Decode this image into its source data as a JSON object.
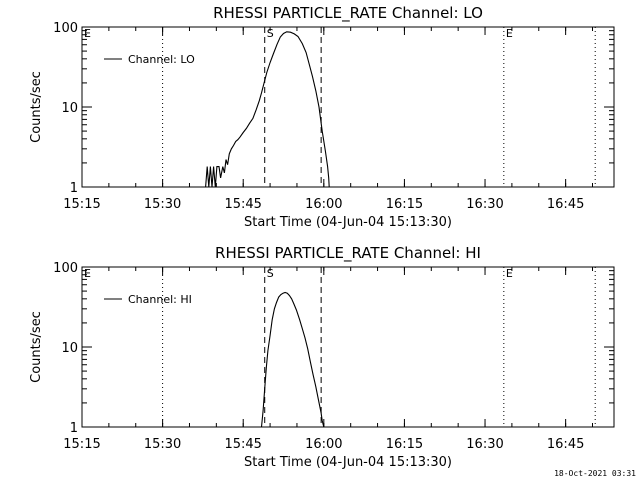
{
  "footer": {
    "timestamp": "18-Oct-2021 03:31"
  },
  "chart_data": [
    {
      "type": "line",
      "title": "RHESSI PARTICLE_RATE Channel: LO",
      "xlabel": "Start Time (04-Jun-04 15:13:30)",
      "ylabel": "Counts/sec",
      "yscale": "log",
      "ylim": [
        1,
        100
      ],
      "xlim": [
        15.25,
        16.9
      ],
      "xticks": [
        15.25,
        15.5,
        15.75,
        16.0,
        16.25,
        16.5,
        16.75
      ],
      "xtick_labels": [
        "15:15",
        "15:30",
        "15:45",
        "16:00",
        "16:15",
        "16:30",
        "16:45"
      ],
      "ytick_values": [
        1,
        10,
        100
      ],
      "ytick_labels": [
        "1",
        "10",
        "100"
      ],
      "legend": "Channel: LO",
      "vlines": [
        {
          "x": 15.5,
          "style": "dotted",
          "label": ""
        },
        {
          "x": 15.8167,
          "style": "dashed",
          "label": "S"
        },
        {
          "x": 15.9917,
          "style": "dashed",
          "label": ""
        },
        {
          "x": 16.5583,
          "style": "dotted",
          "label": "E"
        },
        {
          "x": 16.8417,
          "style": "dotted",
          "label": ""
        }
      ],
      "edge_labels": [
        "E"
      ],
      "series": [
        {
          "name": "Channel: LO",
          "x": [
            15.6333,
            15.6383,
            15.6433,
            15.6483,
            15.6533,
            15.6583,
            15.6633,
            15.6683,
            15.675,
            15.68,
            15.6867,
            15.6917,
            15.6967,
            15.7017,
            15.7067,
            15.7133,
            15.72,
            15.7267,
            15.7333,
            15.74,
            15.75,
            15.76,
            15.77,
            15.78,
            15.79,
            15.8,
            15.8067,
            15.8133,
            15.8233,
            15.8333,
            15.8433,
            15.855,
            15.865,
            15.875,
            15.885,
            15.8967,
            15.9083,
            15.92,
            15.9333,
            15.945,
            15.955,
            15.965,
            15.975,
            15.985,
            15.995,
            16.005,
            16.0117,
            16.015,
            16.0167
          ],
          "values": [
            1,
            1.8,
            1,
            1.8,
            1,
            1.8,
            1,
            1.8,
            1.8,
            1.3,
            1.8,
            1.5,
            2.2,
            1.9,
            2.6,
            3.0,
            3.3,
            3.7,
            3.9,
            4.2,
            4.8,
            5.4,
            6.3,
            7.2,
            9.2,
            12,
            15,
            19,
            27,
            36,
            46,
            61,
            75,
            83,
            87,
            86,
            82,
            76,
            62,
            48,
            34,
            24,
            16,
            10,
            5,
            2.8,
            1.8,
            1.3,
            1
          ]
        }
      ]
    },
    {
      "type": "line",
      "title": "RHESSI PARTICLE_RATE Channel: HI",
      "xlabel": "Start Time (04-Jun-04 15:13:30)",
      "ylabel": "Counts/sec",
      "yscale": "log",
      "ylim": [
        1,
        100
      ],
      "xlim": [
        15.25,
        16.9
      ],
      "xticks": [
        15.25,
        15.5,
        15.75,
        16.0,
        16.25,
        16.5,
        16.75
      ],
      "xtick_labels": [
        "15:15",
        "15:30",
        "15:45",
        "16:00",
        "16:15",
        "16:30",
        "16:45"
      ],
      "ytick_values": [
        1,
        10,
        100
      ],
      "ytick_labels": [
        "1",
        "10",
        "100"
      ],
      "legend": "Channel: HI",
      "vlines": [
        {
          "x": 15.5,
          "style": "dotted",
          "label": ""
        },
        {
          "x": 15.8167,
          "style": "dashed",
          "label": "S"
        },
        {
          "x": 15.9917,
          "style": "dashed",
          "label": ""
        },
        {
          "x": 16.5583,
          "style": "dotted",
          "label": "E"
        },
        {
          "x": 16.8417,
          "style": "dotted",
          "label": ""
        }
      ],
      "edge_labels": [
        "E"
      ],
      "series": [
        {
          "name": "Channel: HI",
          "x": [
            15.8067,
            15.8117,
            15.8167,
            15.8217,
            15.8267,
            15.8333,
            15.84,
            15.8467,
            15.8533,
            15.86,
            15.8667,
            15.8733,
            15.88,
            15.8867,
            15.8933,
            15.9,
            15.9067,
            15.915,
            15.925,
            15.9333,
            15.9417,
            15.95,
            15.9583,
            15.9667,
            15.975,
            15.9833,
            15.9917,
            15.995,
            16.0
          ],
          "values": [
            1,
            1.6,
            3,
            5.5,
            9,
            14,
            22,
            30,
            36,
            42,
            45,
            47,
            48,
            47,
            44,
            40,
            35,
            29,
            22,
            17,
            13,
            9.5,
            6.5,
            4.5,
            3.2,
            2.2,
            1.5,
            1.2,
            1
          ]
        }
      ]
    }
  ]
}
